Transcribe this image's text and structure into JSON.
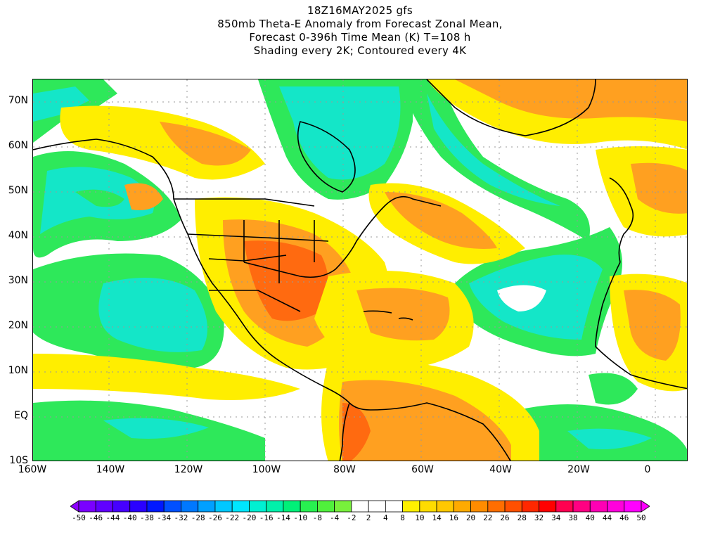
{
  "title": {
    "line1": "18Z16MAY2025 gfs",
    "line2": "850mb Theta-E Anomaly from Forecast Zonal Mean,",
    "line3": "Forecast 0-396h Time Mean (K) T=108 h",
    "line4": "Shading every 2K; Contoured every 4K"
  },
  "axes": {
    "lat_labels": [
      "70N",
      "60N",
      "50N",
      "40N",
      "30N",
      "20N",
      "10N",
      "EQ",
      "10S"
    ],
    "lon_labels": [
      "160W",
      "140W",
      "120W",
      "100W",
      "80W",
      "60W",
      "40W",
      "20W",
      "0"
    ]
  },
  "colorbar": {
    "labels": [
      "-50",
      "-46",
      "-44",
      "-40",
      "-38",
      "-34",
      "-32",
      "-28",
      "-26",
      "-22",
      "-20",
      "-16",
      "-14",
      "-10",
      "-8",
      "-4",
      "-2",
      "2",
      "4",
      "8",
      "10",
      "14",
      "16",
      "20",
      "22",
      "26",
      "28",
      "32",
      "34",
      "38",
      "40",
      "44",
      "46",
      "50"
    ],
    "colors": [
      "#8b00ff",
      "#7a00ff",
      "#6000ff",
      "#4600ff",
      "#2a00ff",
      "#0018ff",
      "#0050ff",
      "#0078ff",
      "#00a0ff",
      "#00c8ff",
      "#00e6ff",
      "#00f0d2",
      "#00f0aa",
      "#00f078",
      "#28f050",
      "#50f03c",
      "#78f03c",
      "#ffffff",
      "#ffffff",
      "#ffffff",
      "#fff000",
      "#ffdc00",
      "#ffc800",
      "#ffaa00",
      "#ff8c00",
      "#ff6e00",
      "#ff5000",
      "#ff2800",
      "#ff0000",
      "#ff0050",
      "#ff0082",
      "#ff00b4",
      "#ff00dc",
      "#ff00ff",
      "#ff00ff"
    ]
  },
  "colors": {
    "neg_green": "#2ee85a",
    "neg_cyan": "#14e6c8",
    "pos_yellow": "#ffee00",
    "pos_orange": "#ffa020",
    "pos_redorange": "#ff6a10"
  }
}
